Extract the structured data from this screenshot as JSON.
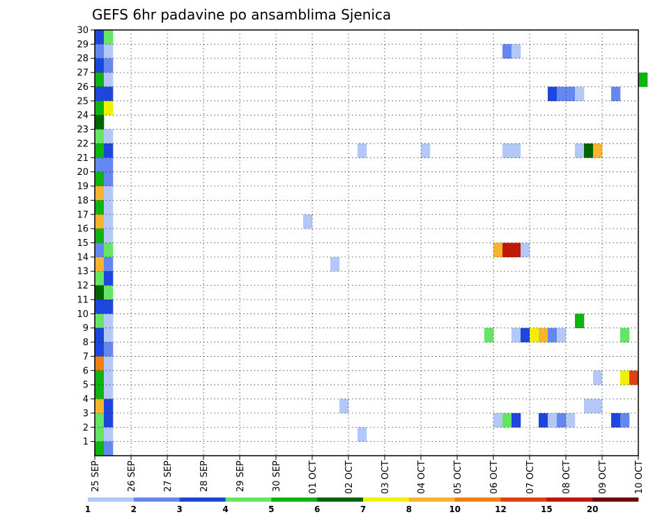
{
  "chart_data": {
    "type": "heatmap",
    "title": "GEFS 6hr padavine po ansamblima Sjenica",
    "x_tick_labels": [
      "25 SEP",
      "26 SEP",
      "27 SEP",
      "28 SEP",
      "29 SEP",
      "30 SEP",
      "01 OCT",
      "02 OCT",
      "03 OCT",
      "04 OCT",
      "05 OCT",
      "06 OCT",
      "07 OCT",
      "08 OCT",
      "09 OCT",
      "10 OCT"
    ],
    "x_range_days": [
      0,
      15
    ],
    "y_tick_labels": [
      "1",
      "2",
      "3",
      "4",
      "5",
      "6",
      "7",
      "8",
      "9",
      "10",
      "11",
      "12",
      "13",
      "14",
      "15",
      "16",
      "17",
      "18",
      "19",
      "20",
      "21",
      "22",
      "23",
      "24",
      "25",
      "26",
      "27",
      "28",
      "29",
      "30"
    ],
    "y_range": [
      0,
      30
    ],
    "grid": "dotted",
    "colorbar": {
      "labels": [
        "1",
        "2",
        "3",
        "4",
        "5",
        "6",
        "7",
        "8",
        "10",
        "12",
        "15",
        "20"
      ],
      "colors": [
        "#b4c8f8",
        "#6488f0",
        "#1e46dc",
        "#64e664",
        "#10b410",
        "#006400",
        "#f0f000",
        "#f8b42c",
        "#f08010",
        "#e04010",
        "#c01808",
        "#6e0c0c"
      ]
    },
    "cells": [
      {
        "m": 30,
        "t": 0,
        "c": 3
      },
      {
        "m": 30,
        "t": 1,
        "c": 4
      },
      {
        "m": 29,
        "t": 0,
        "c": 2
      },
      {
        "m": 29,
        "t": 1,
        "c": 1
      },
      {
        "m": 29,
        "t": 45,
        "c": 2
      },
      {
        "m": 29,
        "t": 46,
        "c": 1
      },
      {
        "m": 28,
        "t": 0,
        "c": 3
      },
      {
        "m": 28,
        "t": 1,
        "c": 2
      },
      {
        "m": 27,
        "t": 0,
        "c": 5
      },
      {
        "m": 27,
        "t": 1,
        "c": 1
      },
      {
        "m": 27,
        "t": 60,
        "c": 5
      },
      {
        "m": 26,
        "t": 0,
        "c": 3
      },
      {
        "m": 26,
        "t": 1,
        "c": 3
      },
      {
        "m": 26,
        "t": 50,
        "c": 3
      },
      {
        "m": 26,
        "t": 51,
        "c": 2
      },
      {
        "m": 26,
        "t": 52,
        "c": 2
      },
      {
        "m": 26,
        "t": 53,
        "c": 1
      },
      {
        "m": 26,
        "t": 57,
        "c": 2
      },
      {
        "m": 25,
        "t": 0,
        "c": 5
      },
      {
        "m": 25,
        "t": 1,
        "c": 7
      },
      {
        "m": 24,
        "t": 0,
        "c": 6
      },
      {
        "m": 23,
        "t": 0,
        "c": 4
      },
      {
        "m": 23,
        "t": 1,
        "c": 1
      },
      {
        "m": 22,
        "t": 0,
        "c": 5
      },
      {
        "m": 22,
        "t": 1,
        "c": 3
      },
      {
        "m": 22,
        "t": 29,
        "c": 1
      },
      {
        "m": 22,
        "t": 36,
        "c": 1
      },
      {
        "m": 22,
        "t": 45,
        "c": 1
      },
      {
        "m": 22,
        "t": 46,
        "c": 1
      },
      {
        "m": 22,
        "t": 53,
        "c": 1
      },
      {
        "m": 22,
        "t": 54,
        "c": 6
      },
      {
        "m": 22,
        "t": 55,
        "c": 8
      },
      {
        "m": 21,
        "t": 0,
        "c": 2
      },
      {
        "m": 21,
        "t": 1,
        "c": 2
      },
      {
        "m": 20,
        "t": 0,
        "c": 5
      },
      {
        "m": 20,
        "t": 1,
        "c": 2
      },
      {
        "m": 19,
        "t": 0,
        "c": 8
      },
      {
        "m": 19,
        "t": 1,
        "c": 1
      },
      {
        "m": 18,
        "t": 0,
        "c": 5
      },
      {
        "m": 18,
        "t": 1,
        "c": 1
      },
      {
        "m": 17,
        "t": 0,
        "c": 8
      },
      {
        "m": 17,
        "t": 1,
        "c": 1
      },
      {
        "m": 17,
        "t": 23,
        "c": 1
      },
      {
        "m": 16,
        "t": 0,
        "c": 5
      },
      {
        "m": 16,
        "t": 1,
        "c": 1
      },
      {
        "m": 15,
        "t": 0,
        "c": 2
      },
      {
        "m": 15,
        "t": 1,
        "c": 4
      },
      {
        "m": 15,
        "t": 44,
        "c": 8
      },
      {
        "m": 15,
        "t": 45,
        "c": 11
      },
      {
        "m": 15,
        "t": 46,
        "c": 11
      },
      {
        "m": 15,
        "t": 47,
        "c": 1
      },
      {
        "m": 14,
        "t": 0,
        "c": 8
      },
      {
        "m": 14,
        "t": 1,
        "c": 2
      },
      {
        "m": 14,
        "t": 26,
        "c": 1
      },
      {
        "m": 13,
        "t": 0,
        "c": 4
      },
      {
        "m": 13,
        "t": 1,
        "c": 3
      },
      {
        "m": 12,
        "t": 0,
        "c": 6
      },
      {
        "m": 12,
        "t": 1,
        "c": 4
      },
      {
        "m": 11,
        "t": 0,
        "c": 3
      },
      {
        "m": 11,
        "t": 1,
        "c": 3
      },
      {
        "m": 10,
        "t": 0,
        "c": 4
      },
      {
        "m": 10,
        "t": 1,
        "c": 1
      },
      {
        "m": 10,
        "t": 53,
        "c": 5
      },
      {
        "m": 9,
        "t": 0,
        "c": 3
      },
      {
        "m": 9,
        "t": 1,
        "c": 1
      },
      {
        "m": 9,
        "t": 43,
        "c": 4
      },
      {
        "m": 9,
        "t": 46,
        "c": 1
      },
      {
        "m": 9,
        "t": 47,
        "c": 3
      },
      {
        "m": 9,
        "t": 48,
        "c": 7
      },
      {
        "m": 9,
        "t": 49,
        "c": 8
      },
      {
        "m": 9,
        "t": 50,
        "c": 2
      },
      {
        "m": 9,
        "t": 51,
        "c": 1
      },
      {
        "m": 9,
        "t": 58,
        "c": 4
      },
      {
        "m": 8,
        "t": 0,
        "c": 3
      },
      {
        "m": 8,
        "t": 1,
        "c": 2
      },
      {
        "m": 7,
        "t": 0,
        "c": 9
      },
      {
        "m": 7,
        "t": 1,
        "c": 1
      },
      {
        "m": 6,
        "t": 0,
        "c": 5
      },
      {
        "m": 6,
        "t": 1,
        "c": 1
      },
      {
        "m": 6,
        "t": 55,
        "c": 1
      },
      {
        "m": 6,
        "t": 58,
        "c": 7
      },
      {
        "m": 6,
        "t": 59,
        "c": 10
      },
      {
        "m": 5,
        "t": 0,
        "c": 5
      },
      {
        "m": 5,
        "t": 1,
        "c": 1
      },
      {
        "m": 4,
        "t": 0,
        "c": 8
      },
      {
        "m": 4,
        "t": 1,
        "c": 3
      },
      {
        "m": 4,
        "t": 27,
        "c": 1
      },
      {
        "m": 4,
        "t": 54,
        "c": 1
      },
      {
        "m": 4,
        "t": 55,
        "c": 1
      },
      {
        "m": 3,
        "t": 0,
        "c": 4
      },
      {
        "m": 3,
        "t": 1,
        "c": 3
      },
      {
        "m": 3,
        "t": 44,
        "c": 1
      },
      {
        "m": 3,
        "t": 45,
        "c": 4
      },
      {
        "m": 3,
        "t": 46,
        "c": 3
      },
      {
        "m": 3,
        "t": 49,
        "c": 3
      },
      {
        "m": 3,
        "t": 50,
        "c": 1
      },
      {
        "m": 3,
        "t": 51,
        "c": 2
      },
      {
        "m": 3,
        "t": 52,
        "c": 1
      },
      {
        "m": 3,
        "t": 57,
        "c": 3
      },
      {
        "m": 3,
        "t": 58,
        "c": 2
      },
      {
        "m": 2,
        "t": 0,
        "c": 4
      },
      {
        "m": 2,
        "t": 1,
        "c": 1
      },
      {
        "m": 2,
        "t": 29,
        "c": 1
      },
      {
        "m": 1,
        "t": 0,
        "c": 5
      },
      {
        "m": 1,
        "t": 1,
        "c": 2
      }
    ]
  }
}
